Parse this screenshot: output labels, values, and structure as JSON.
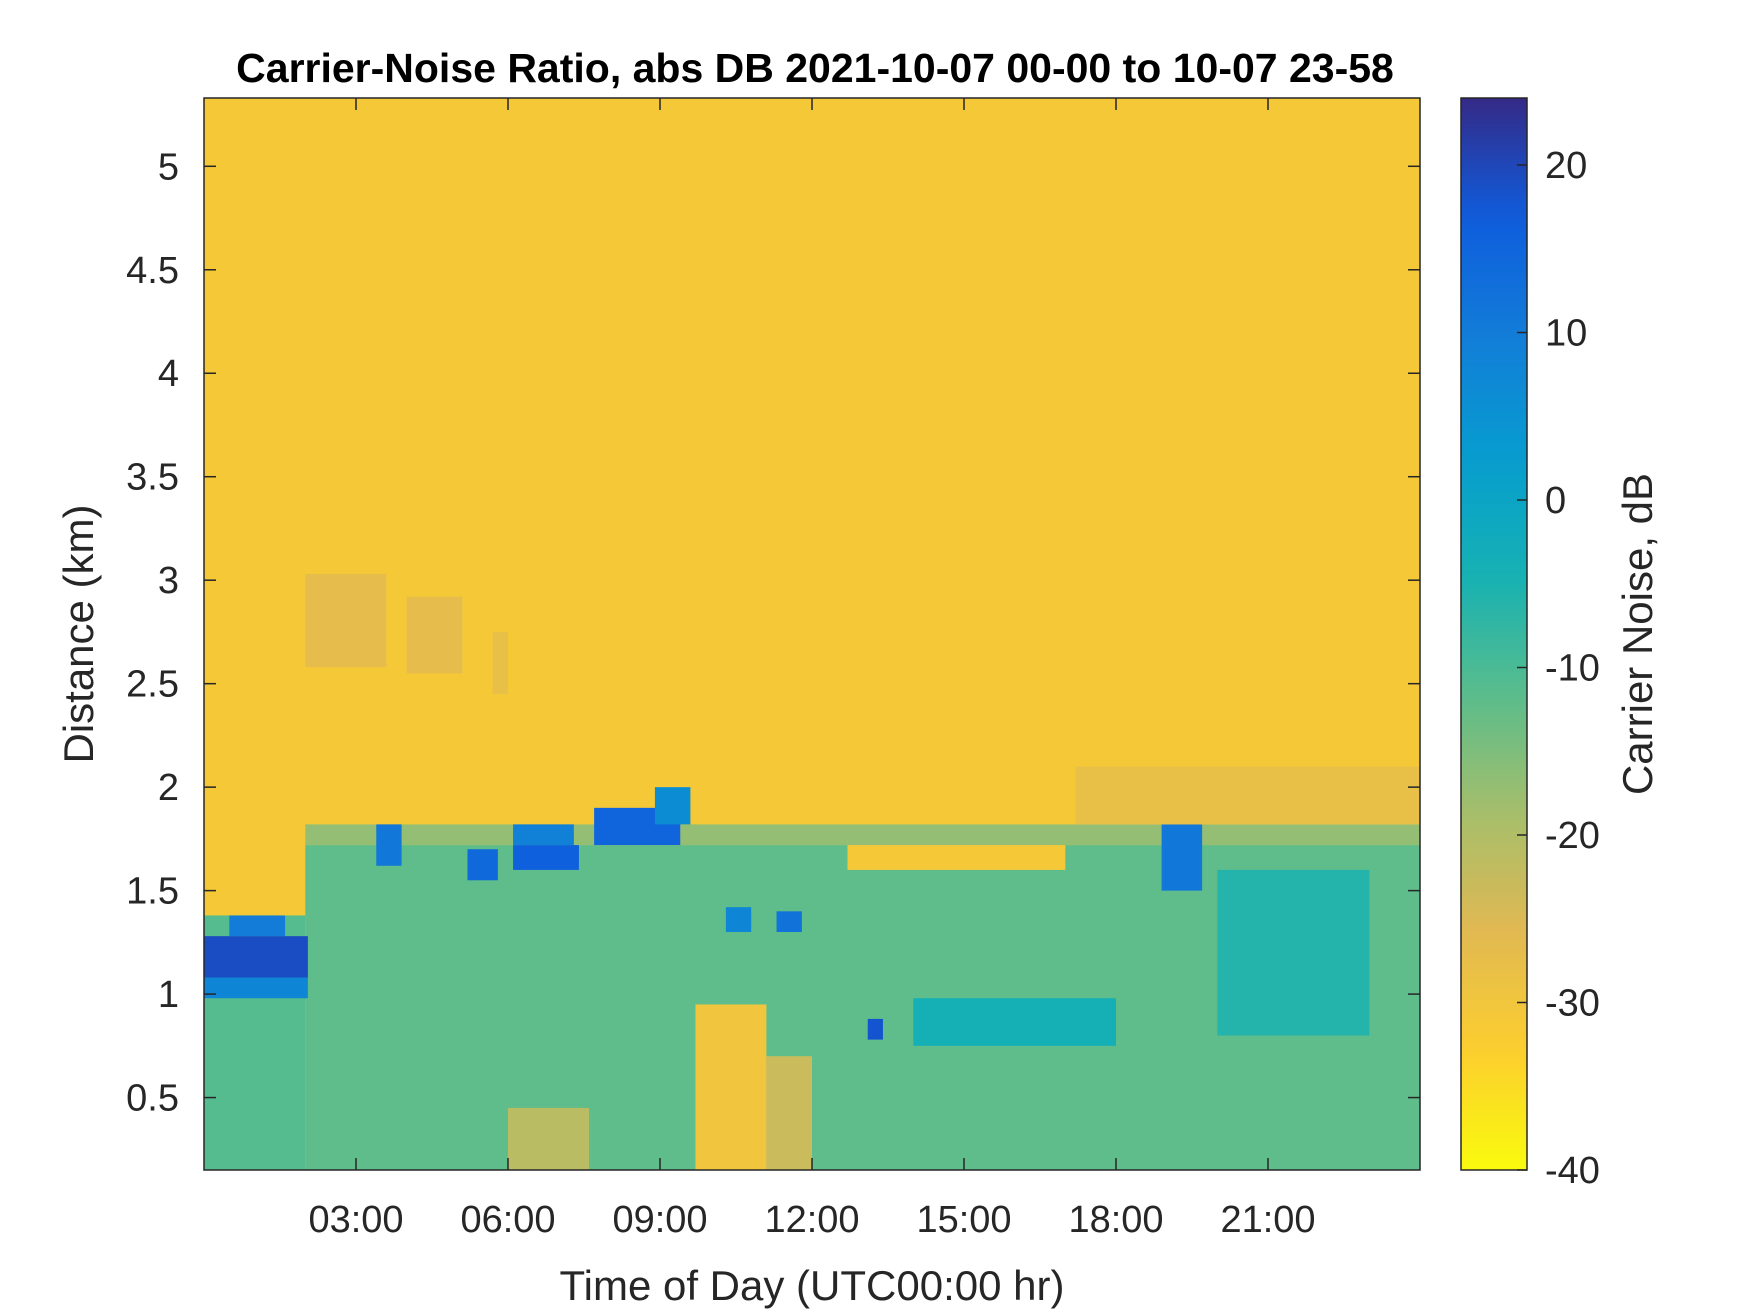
{
  "chart_data": {
    "type": "heatmap",
    "title": "Carrier-Noise Ratio, abs DB 2021-10-07 00-00 to 10-07 23-58",
    "xlabel": "Time of Day (UTC00:00 hr)",
    "ylabel": "Distance (km)",
    "colorbar_label": "Carrier Noise, dB",
    "xlim_hours": [
      0,
      24
    ],
    "ylim_km": [
      0.15,
      5.33
    ],
    "clim_db": [
      -40,
      24
    ],
    "x_ticks": [
      {
        "hour": 3,
        "label": "03:00"
      },
      {
        "hour": 6,
        "label": "06:00"
      },
      {
        "hour": 9,
        "label": "09:00"
      },
      {
        "hour": 12,
        "label": "12:00"
      },
      {
        "hour": 15,
        "label": "15:00"
      },
      {
        "hour": 18,
        "label": "18:00"
      },
      {
        "hour": 21,
        "label": "21:00"
      }
    ],
    "y_ticks": [
      {
        "km": 0.5,
        "label": "0.5"
      },
      {
        "km": 1,
        "label": "1"
      },
      {
        "km": 1.5,
        "label": "1.5"
      },
      {
        "km": 2,
        "label": "2"
      },
      {
        "km": 2.5,
        "label": "2.5"
      },
      {
        "km": 3,
        "label": "3"
      },
      {
        "km": 3.5,
        "label": "3.5"
      },
      {
        "km": 4,
        "label": "4"
      },
      {
        "km": 4.5,
        "label": "4.5"
      },
      {
        "km": 5,
        "label": "5"
      }
    ],
    "colorbar_ticks": [
      {
        "db": 20,
        "label": "20"
      },
      {
        "db": 10,
        "label": "10"
      },
      {
        "db": 0,
        "label": "0"
      },
      {
        "db": -10,
        "label": "-10"
      },
      {
        "db": -20,
        "label": "-20"
      },
      {
        "db": -30,
        "label": "-30"
      },
      {
        "db": -40,
        "label": "-40"
      }
    ],
    "colormap": "parula",
    "colormap_reversed": true,
    "background_value_db": -31,
    "regions": [
      {
        "t": [
          0,
          2.0
        ],
        "d": [
          0.15,
          1.38
        ],
        "db": -11
      },
      {
        "t": [
          2.0,
          24
        ],
        "d": [
          0.15,
          1.72
        ],
        "db": -12
      },
      {
        "t": [
          2.0,
          24
        ],
        "d": [
          1.72,
          1.82
        ],
        "db": -17
      },
      {
        "t": [
          0.0,
          2.05
        ],
        "d": [
          1.08,
          1.28
        ],
        "db": 19
      },
      {
        "t": [
          0.0,
          2.05
        ],
        "d": [
          0.98,
          1.08
        ],
        "db": 8
      },
      {
        "t": [
          0.5,
          1.6
        ],
        "d": [
          1.28,
          1.38
        ],
        "db": 10
      },
      {
        "t": [
          3.4,
          3.9
        ],
        "d": [
          1.62,
          1.82
        ],
        "db": 11
      },
      {
        "t": [
          5.2,
          5.8
        ],
        "d": [
          1.55,
          1.7
        ],
        "db": 14
      },
      {
        "t": [
          6.1,
          7.4
        ],
        "d": [
          1.6,
          1.72
        ],
        "db": 16
      },
      {
        "t": [
          6.1,
          7.3
        ],
        "d": [
          1.72,
          1.82
        ],
        "db": 9
      },
      {
        "t": [
          7.7,
          9.4
        ],
        "d": [
          1.72,
          1.9
        ],
        "db": 15
      },
      {
        "t": [
          8.9,
          9.6
        ],
        "d": [
          1.82,
          2.0
        ],
        "db": 6
      },
      {
        "t": [
          10.3,
          10.8
        ],
        "d": [
          1.3,
          1.42
        ],
        "db": 8
      },
      {
        "t": [
          11.3,
          11.8
        ],
        "d": [
          1.3,
          1.4
        ],
        "db": 12
      },
      {
        "t": [
          13.1,
          13.4
        ],
        "d": [
          0.78,
          0.88
        ],
        "db": 18
      },
      {
        "t": [
          18.9,
          19.7
        ],
        "d": [
          1.5,
          1.82
        ],
        "db": 11
      },
      {
        "t": [
          14.0,
          18.0
        ],
        "d": [
          0.75,
          0.98
        ],
        "db": -4
      },
      {
        "t": [
          20.0,
          23.0
        ],
        "d": [
          0.8,
          1.6
        ],
        "db": -6
      },
      {
        "t": [
          9.7,
          11.1
        ],
        "d": [
          0.15,
          0.95
        ],
        "db": -30
      },
      {
        "t": [
          11.1,
          12.0
        ],
        "d": [
          0.15,
          0.7
        ],
        "db": -23
      },
      {
        "t": [
          6.0,
          7.6
        ],
        "d": [
          0.15,
          0.45
        ],
        "db": -21
      },
      {
        "t": [
          12.7,
          17.0
        ],
        "d": [
          1.6,
          1.72
        ],
        "db": -31
      },
      {
        "t": [
          17.2,
          24
        ],
        "d": [
          1.82,
          2.1
        ],
        "db": -28
      },
      {
        "t": [
          2.0,
          3.6
        ],
        "d": [
          2.58,
          3.03
        ],
        "db": -27
      },
      {
        "t": [
          4.0,
          5.1
        ],
        "d": [
          2.55,
          2.92
        ],
        "db": -27
      },
      {
        "t": [
          5.7,
          6.0
        ],
        "d": [
          2.45,
          2.75
        ],
        "db": -28
      }
    ]
  }
}
